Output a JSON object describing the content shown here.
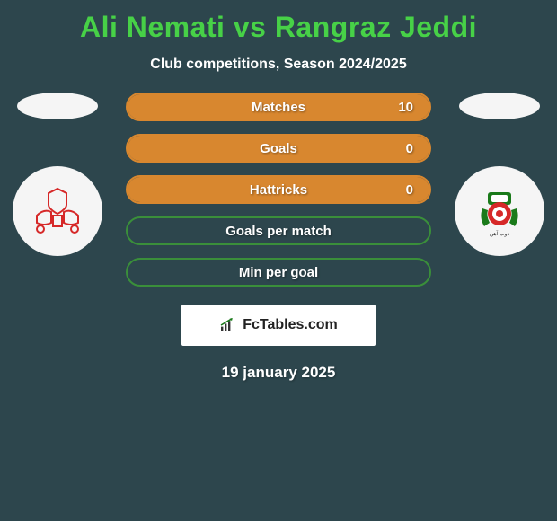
{
  "title": "Ali Nemati vs Rangraz Jeddi",
  "subtitle": "Club competitions, Season 2024/2025",
  "date": "19 january 2025",
  "logo_text": "FcTables.com",
  "colors": {
    "bg": "#2d464d",
    "title": "#47d147",
    "orange": "#d8872f",
    "green": "#3a8f3a",
    "white": "#ffffff"
  },
  "bars": [
    {
      "label": "Matches",
      "value": "10",
      "style": "orange",
      "fill_pct": 100
    },
    {
      "label": "Goals",
      "value": "0",
      "style": "orange",
      "fill_pct": 100
    },
    {
      "label": "Hattricks",
      "value": "0",
      "style": "orange",
      "fill_pct": 100
    },
    {
      "label": "Goals per match",
      "value": "",
      "style": "green",
      "fill_pct": 0
    },
    {
      "label": "Min per goal",
      "value": "",
      "style": "green",
      "fill_pct": 0
    }
  ],
  "left_badge": "persepolis-crest",
  "right_badge": "zob-ahan-crest"
}
